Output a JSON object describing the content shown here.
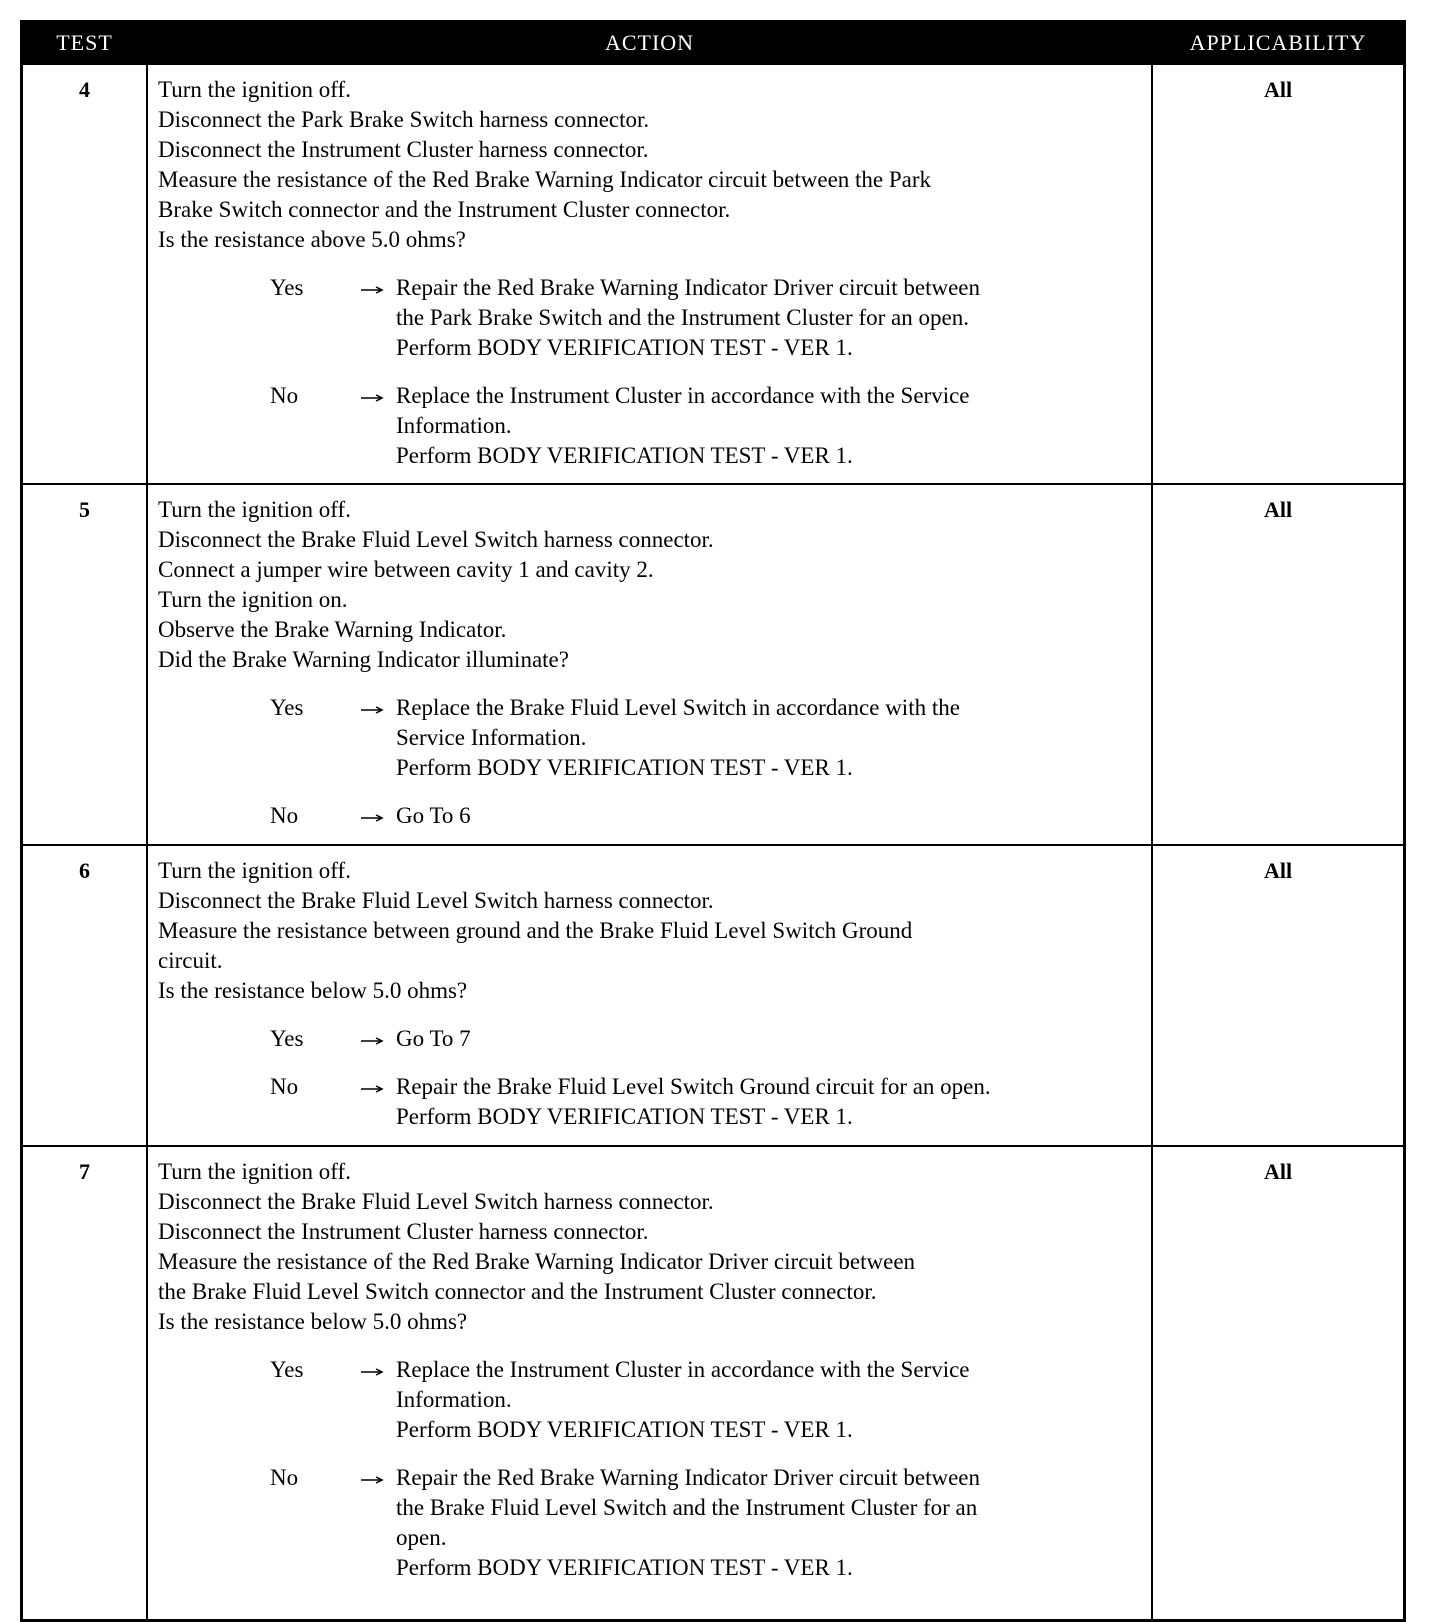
{
  "header": [
    "TEST",
    "ACTION",
    "APPLICABILITY"
  ],
  "rows": [
    {
      "test": "4",
      "applicability": "All",
      "steps": [
        "Turn the ignition off.",
        "Disconnect the Park Brake Switch harness connector.",
        "Disconnect the Instrument Cluster harness connector.",
        "Measure the resistance of the Red Brake Warning Indicator circuit between the Park",
        "Brake Switch connector and the Instrument Cluster connector.",
        "Is the resistance above 5.0 ohms?"
      ],
      "outcomes": [
        {
          "answer": "Yes",
          "lines": [
            "Repair the Red Brake Warning Indicator Driver circuit between",
            "the Park Brake Switch and the Instrument Cluster for an open.",
            "Perform BODY VERIFICATION TEST - VER 1."
          ]
        },
        {
          "answer": "No",
          "lines": [
            "Replace the Instrument Cluster in accordance with the Service",
            "Information.",
            "Perform BODY VERIFICATION TEST - VER 1."
          ]
        }
      ]
    },
    {
      "test": "5",
      "applicability": "All",
      "steps": [
        "Turn the ignition off.",
        "Disconnect the Brake Fluid Level Switch harness connector.",
        "Connect a jumper wire between cavity 1 and cavity 2.",
        "Turn the ignition on.",
        "Observe the Brake Warning Indicator.",
        "Did the Brake Warning Indicator illuminate?"
      ],
      "outcomes": [
        {
          "answer": "Yes",
          "lines": [
            "Replace the Brake Fluid Level Switch in accordance with the",
            "Service Information.",
            "Perform BODY VERIFICATION TEST - VER 1."
          ]
        },
        {
          "answer": "No",
          "lines": [
            "Go To 6"
          ]
        }
      ]
    },
    {
      "test": "6",
      "applicability": "All",
      "steps": [
        "Turn the ignition off.",
        "Disconnect the Brake Fluid Level Switch harness connector.",
        "Measure the resistance between ground and the Brake Fluid Level Switch Ground",
        "circuit.",
        "Is the resistance below 5.0 ohms?"
      ],
      "outcomes": [
        {
          "answer": "Yes",
          "lines": [
            "Go To 7"
          ]
        },
        {
          "answer": "No",
          "lines": [
            "Repair the Brake Fluid Level Switch Ground circuit for an open.",
            "Perform BODY VERIFICATION TEST - VER 1."
          ]
        }
      ]
    },
    {
      "test": "7",
      "applicability": "All",
      "steps": [
        "Turn the ignition off.",
        "Disconnect the Brake Fluid Level Switch harness connector.",
        "Disconnect the Instrument Cluster harness connector.",
        "Measure the resistance of the Red Brake Warning Indicator Driver circuit between",
        "the Brake Fluid Level Switch connector and the Instrument Cluster connector.",
        "Is the resistance below 5.0 ohms?"
      ],
      "outcomes": [
        {
          "answer": "Yes",
          "lines": [
            "Replace the Instrument Cluster in accordance with the Service",
            "Information.",
            "Perform BODY VERIFICATION TEST - VER 1."
          ]
        },
        {
          "answer": "No",
          "lines": [
            "Repair the Red Brake Warning Indicator Driver circuit between",
            "the Brake Fluid Level Switch and the Instrument Cluster for an",
            "open.",
            "Perform BODY VERIFICATION TEST - VER 1."
          ]
        }
      ]
    }
  ]
}
